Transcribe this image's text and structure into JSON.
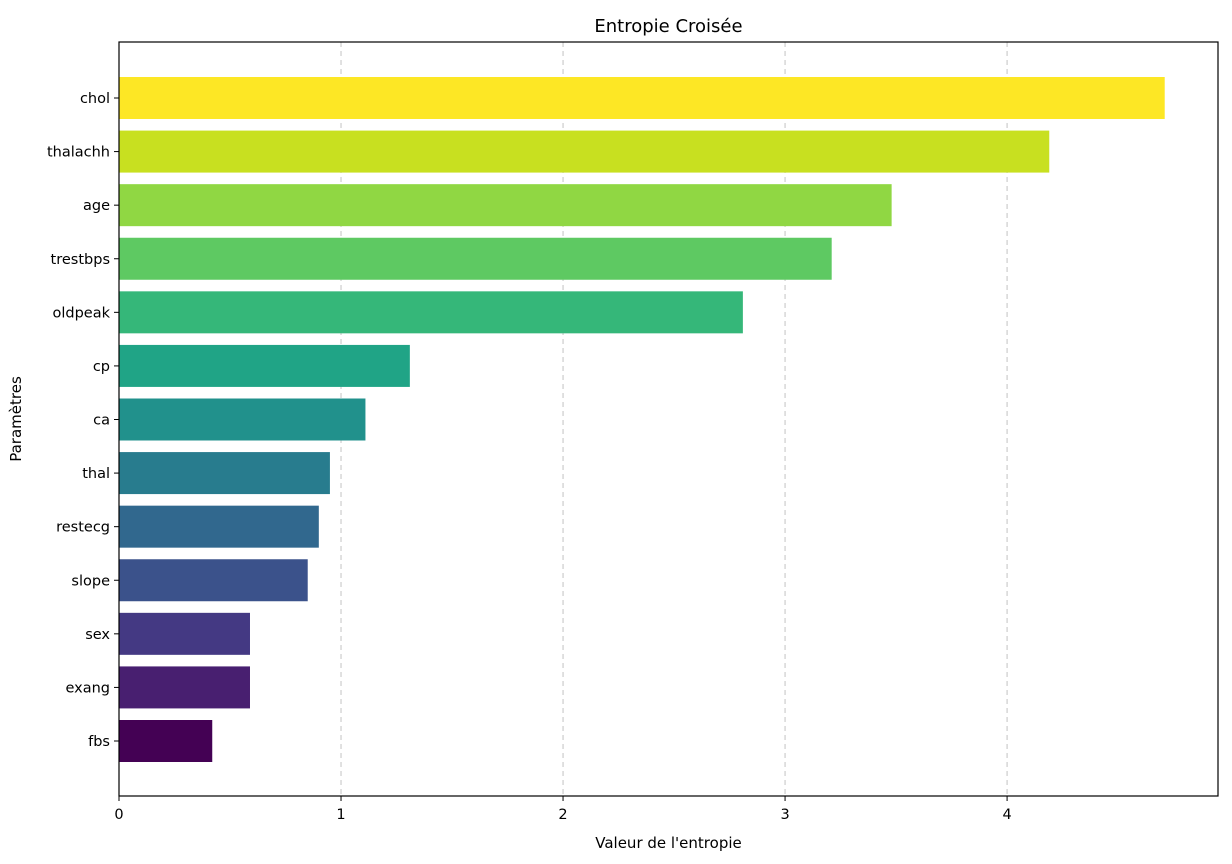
{
  "chart_data": {
    "type": "bar",
    "orientation": "horizontal",
    "title": "Entropie Croisée",
    "xlabel": "Valeur de l'entropie",
    "ylabel": "Paramètres",
    "categories": [
      "chol",
      "thalachh",
      "age",
      "trestbps",
      "oldpeak",
      "cp",
      "ca",
      "thal",
      "restecg",
      "slope",
      "sex",
      "exang",
      "fbs"
    ],
    "values": [
      4.71,
      4.19,
      3.48,
      3.21,
      2.81,
      1.31,
      1.11,
      0.95,
      0.9,
      0.85,
      0.59,
      0.59,
      0.42
    ],
    "colors": [
      "#fde725",
      "#c8e020",
      "#90d743",
      "#5ec962",
      "#35b779",
      "#20a486",
      "#21918c",
      "#287c8e",
      "#31688e",
      "#3b528b",
      "#443983",
      "#481f70",
      "#440154"
    ],
    "xlim": [
      0,
      4.95
    ],
    "xticks": [
      "0",
      "1",
      "2",
      "3",
      "4"
    ],
    "grid": "x-dashed"
  }
}
